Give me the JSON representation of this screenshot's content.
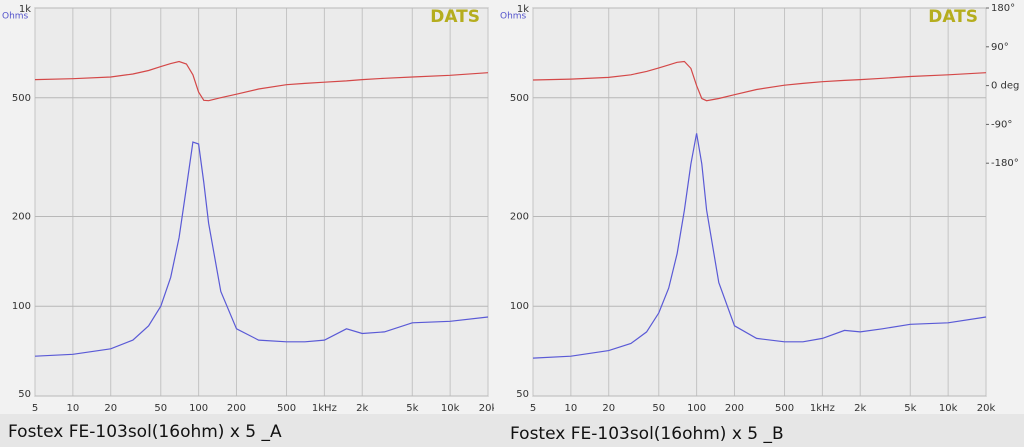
{
  "chart_data": [
    {
      "type": "line",
      "title": "Fostex FE-103sol(16ohm) x 5 _A",
      "brand": "DATS",
      "ylabel": "Ohms",
      "log_x": true,
      "log_y": true,
      "grid": true,
      "x": [
        5,
        10,
        20,
        30,
        40,
        50,
        60,
        70,
        80,
        90,
        100,
        110,
        120,
        150,
        200,
        300,
        500,
        700,
        1000,
        1500,
        2000,
        3000,
        5000,
        10000,
        20000
      ],
      "xlim": [
        5,
        20000
      ],
      "xticks": [
        5,
        10,
        20,
        50,
        100,
        200,
        500,
        {
          "value": 1000,
          "label": "1kHz"
        },
        {
          "value": 2000,
          "label": "2k"
        },
        {
          "value": 5000,
          "label": "5k"
        },
        {
          "value": 10000,
          "label": "10k"
        },
        {
          "value": 20000,
          "label": "20k"
        }
      ],
      "ylim": [
        50,
        1000
      ],
      "yticks": [
        {
          "value": 1000,
          "label": "1k"
        },
        500,
        200,
        100,
        50
      ],
      "y2lim": [
        -720,
        180
      ],
      "series": [
        {
          "name": "Impedance",
          "color": "#5a5ad6",
          "values": [
            68,
            69,
            72,
            77,
            86,
            100,
            125,
            170,
            250,
            355,
            350,
            260,
            190,
            112,
            84,
            77,
            76,
            76,
            77,
            84,
            81,
            82,
            88,
            89,
            92
          ]
        },
        {
          "name": "Phase",
          "color": "#d44848",
          "axis": "y2",
          "values": [
            14,
            16,
            20,
            27,
            35,
            44,
            51,
            56,
            50,
            25,
            -15,
            -34,
            -35,
            -28,
            -20,
            -8,
            2,
            5,
            8,
            11,
            14,
            17,
            20,
            24,
            30
          ]
        }
      ]
    },
    {
      "type": "line",
      "title": "Fostex FE-103sol(16ohm) x 5 _B",
      "brand": "DATS",
      "ylabel": "Ohms",
      "log_x": true,
      "log_y": true,
      "grid": true,
      "x": [
        5,
        10,
        20,
        30,
        40,
        50,
        60,
        70,
        80,
        90,
        100,
        110,
        120,
        150,
        200,
        300,
        500,
        700,
        1000,
        1500,
        2000,
        3000,
        5000,
        10000,
        20000
      ],
      "xlim": [
        5,
        20000
      ],
      "xticks": [
        5,
        10,
        20,
        50,
        100,
        200,
        500,
        {
          "value": 1000,
          "label": "1kHz"
        },
        {
          "value": 2000,
          "label": "2k"
        },
        {
          "value": 5000,
          "label": "5k"
        },
        {
          "value": 10000,
          "label": "10k"
        },
        {
          "value": 20000,
          "label": "20k"
        }
      ],
      "ylim": [
        50,
        1000
      ],
      "yticks": [
        {
          "value": 1000,
          "label": "1k"
        },
        500,
        200,
        100,
        50
      ],
      "y2lim": [
        -720,
        180
      ],
      "y2ticks": [
        {
          "value": 180,
          "label": "180°"
        },
        {
          "value": 90,
          "label": "90°"
        },
        {
          "value": 0,
          "label": "0 deg"
        },
        {
          "value": -90,
          "label": "-90°"
        },
        {
          "value": -180,
          "label": "-180°"
        }
      ],
      "series": [
        {
          "name": "Impedance",
          "color": "#5a5ad6",
          "values": [
            67,
            68,
            71,
            75,
            82,
            95,
            115,
            150,
            210,
            300,
            380,
            300,
            210,
            120,
            86,
            78,
            76,
            76,
            78,
            83,
            82,
            84,
            87,
            88,
            92
          ]
        },
        {
          "name": "Phase",
          "color": "#d44848",
          "axis": "y2",
          "values": [
            13,
            15,
            19,
            25,
            33,
            41,
            48,
            54,
            56,
            40,
            0,
            -30,
            -35,
            -30,
            -21,
            -9,
            1,
            5,
            9,
            12,
            14,
            17,
            21,
            25,
            30
          ]
        }
      ]
    }
  ]
}
